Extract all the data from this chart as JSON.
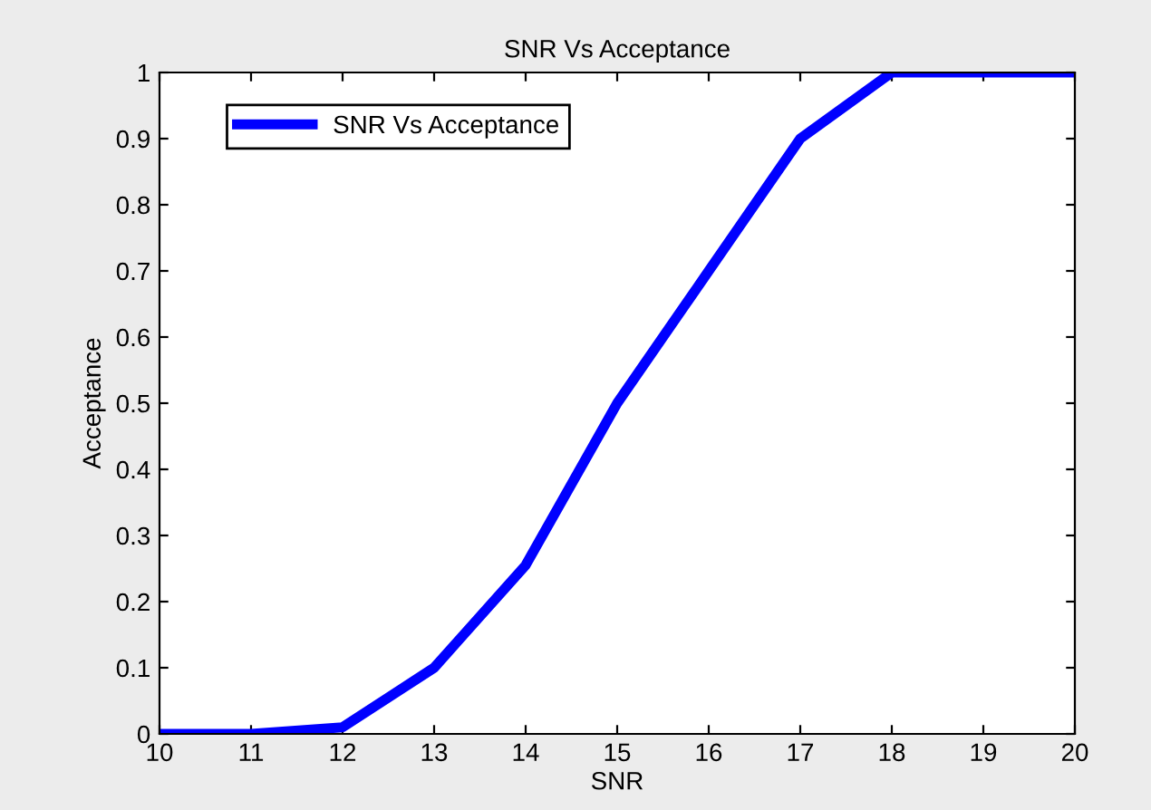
{
  "chart_data": {
    "type": "line",
    "title": "SNR Vs Acceptance",
    "xlabel": "SNR",
    "ylabel": "Acceptance",
    "x": [
      10,
      11,
      12,
      13,
      14,
      15,
      16,
      17,
      18,
      19,
      20
    ],
    "series": [
      {
        "name": "SNR Vs Acceptance",
        "color": "#0000ff",
        "values": [
          0,
          0,
          0.01,
          0.1,
          0.255,
          0.5,
          0.7,
          0.9,
          1,
          1,
          1
        ]
      }
    ],
    "xlim": [
      10,
      20
    ],
    "xticks": [
      10,
      11,
      12,
      13,
      14,
      15,
      16,
      17,
      18,
      19,
      20
    ],
    "ylim": [
      0,
      1
    ],
    "yticks": [
      0,
      0.1,
      0.2,
      0.3,
      0.4,
      0.5,
      0.6,
      0.7,
      0.8,
      0.9,
      1
    ],
    "grid": false,
    "legend": "top left",
    "marker": "none",
    "line_style": "solid"
  }
}
